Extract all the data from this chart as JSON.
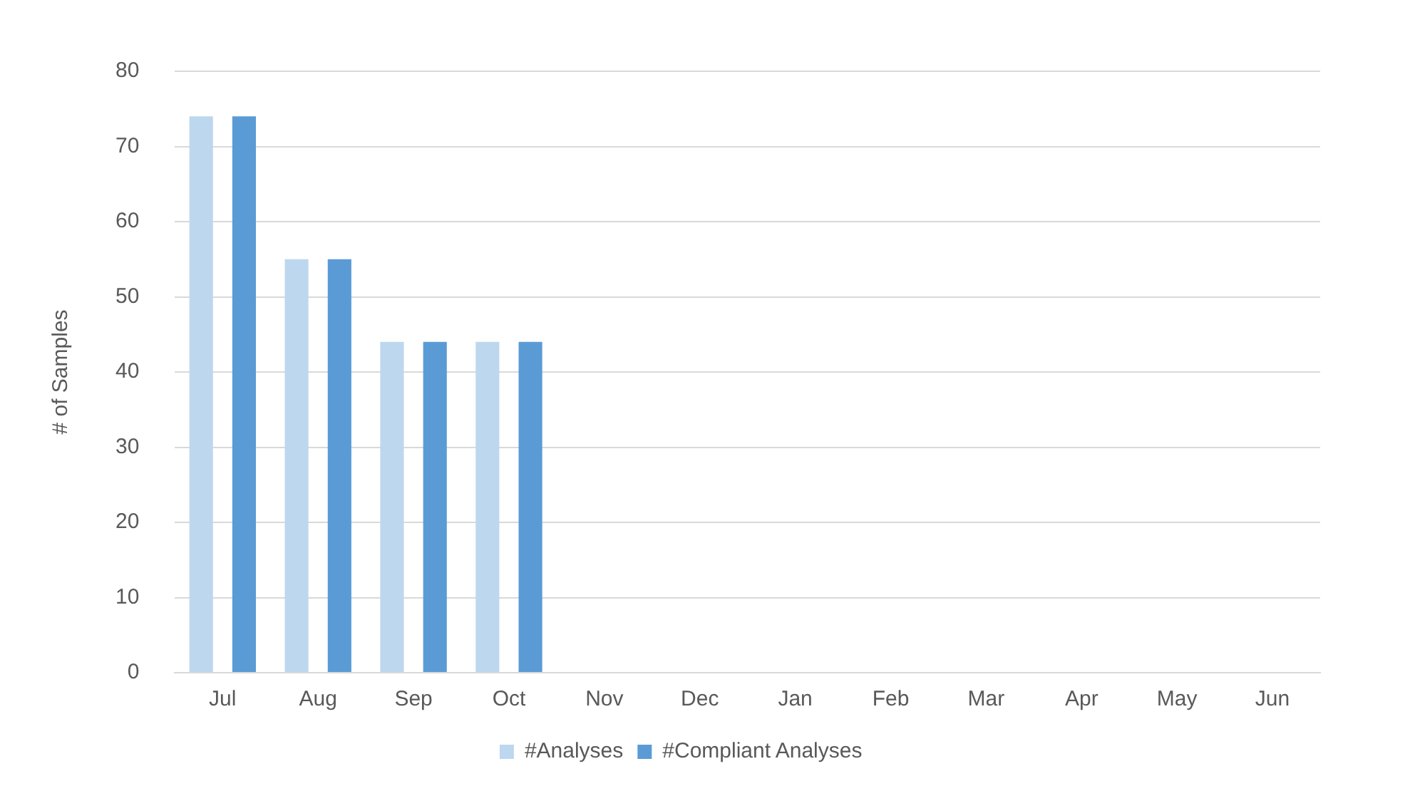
{
  "chart_data": {
    "type": "bar",
    "ylabel": "# of Samples",
    "categories": [
      "Jul",
      "Aug",
      "Sep",
      "Oct",
      "Nov",
      "Dec",
      "Jan",
      "Feb",
      "Mar",
      "Apr",
      "May",
      "Jun"
    ],
    "series": [
      {
        "name": "#Analyses",
        "color": "#bdd7ee",
        "values": [
          74,
          55,
          44,
          44,
          null,
          null,
          null,
          null,
          null,
          null,
          null,
          null
        ]
      },
      {
        "name": "#Compliant Analyses",
        "color": "#5b9bd5",
        "values": [
          74,
          55,
          44,
          44,
          null,
          null,
          null,
          null,
          null,
          null,
          null,
          null
        ]
      }
    ],
    "ylim": [
      0,
      80
    ],
    "yticks": [
      0,
      10,
      20,
      30,
      40,
      50,
      60,
      70,
      80
    ],
    "grid": "y",
    "legend": "bottom"
  }
}
